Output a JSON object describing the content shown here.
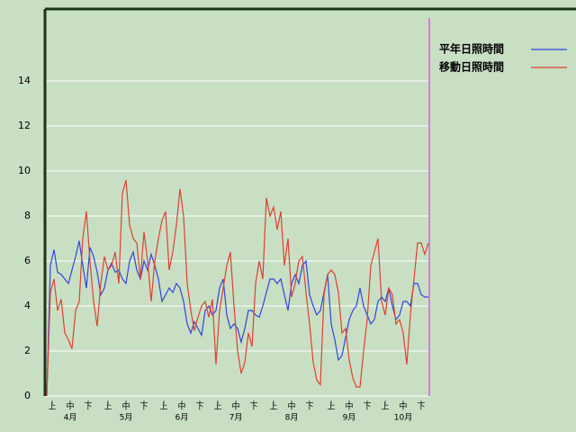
{
  "chart_data": {
    "type": "line",
    "x": [
      0,
      2,
      4,
      6,
      8,
      10,
      12,
      14,
      16,
      18,
      20,
      22,
      24,
      26,
      28,
      30,
      32,
      34,
      36,
      38,
      40,
      42,
      44,
      46,
      48,
      50,
      52,
      54,
      56,
      58,
      60,
      62,
      64,
      66,
      68,
      70,
      72,
      74,
      76,
      78,
      80,
      82,
      84,
      86,
      88,
      90,
      92,
      94,
      96,
      98,
      100,
      102,
      104,
      106,
      108,
      110,
      112,
      114,
      116,
      118,
      120,
      122,
      124,
      126,
      128,
      130,
      132,
      134,
      136,
      138,
      140,
      142,
      144,
      146,
      148,
      150,
      152,
      154,
      156,
      158,
      160,
      162,
      164,
      166,
      168,
      170,
      172,
      174,
      176,
      178,
      180,
      182,
      184,
      186,
      188,
      190,
      192,
      194,
      196,
      198,
      200,
      202,
      204,
      206,
      208,
      210,
      212
    ],
    "series": [
      {
        "name": "平年日照時間",
        "color": "#3344dd",
        "values": [
          0,
          5.8,
          6.5,
          5.5,
          5.4,
          5.2,
          5.0,
          5.6,
          6.2,
          6.9,
          5.8,
          4.8,
          6.6,
          6.2,
          5.5,
          4.5,
          4.8,
          5.6,
          5.9,
          5.5,
          5.6,
          5.2,
          5.0,
          6.0,
          6.4,
          5.6,
          5.2,
          6.0,
          5.6,
          6.3,
          5.8,
          5.2,
          4.2,
          4.5,
          4.8,
          4.6,
          5.0,
          4.8,
          4.2,
          3.2,
          2.8,
          3.3,
          3.0,
          2.7,
          3.8,
          4.0,
          3.6,
          3.8,
          4.8,
          5.2,
          3.6,
          3.0,
          3.2,
          3.0,
          2.4,
          3.0,
          3.8,
          3.8,
          3.6,
          3.5,
          4.0,
          4.6,
          5.2,
          5.2,
          5.0,
          5.2,
          4.5,
          3.8,
          5.0,
          5.4,
          5.0,
          5.8,
          6.0,
          4.5,
          4.0,
          3.6,
          3.8,
          4.6,
          5.4,
          3.2,
          2.5,
          1.6,
          1.8,
          2.6,
          3.4,
          3.8,
          4.0,
          4.8,
          4.0,
          3.6,
          3.2,
          3.4,
          4.2,
          4.4,
          4.2,
          4.8,
          4.0,
          3.4,
          3.6,
          4.2,
          4.2,
          4.0,
          5.0,
          5.0,
          4.5,
          4.4,
          4.4
        ]
      },
      {
        "name": "移動日照時間",
        "color": "#e04030",
        "values": [
          0,
          4.6,
          5.2,
          3.8,
          4.3,
          2.8,
          2.5,
          2.1,
          3.8,
          4.2,
          7.0,
          8.2,
          6.0,
          4.2,
          3.1,
          5.0,
          6.2,
          5.6,
          5.8,
          6.4,
          5.0,
          9.0,
          9.6,
          7.6,
          7.0,
          6.8,
          5.2,
          7.3,
          6.0,
          4.2,
          6.0,
          7.0,
          7.8,
          8.2,
          5.6,
          6.4,
          7.6,
          9.2,
          8.0,
          5.0,
          3.8,
          2.9,
          3.5,
          4.0,
          4.2,
          3.5,
          4.3,
          1.4,
          3.8,
          4.8,
          5.8,
          6.4,
          4.0,
          2.0,
          1.0,
          1.5,
          2.8,
          2.2,
          5.0,
          6.0,
          5.2,
          8.8,
          8.0,
          8.4,
          7.4,
          8.2,
          5.8,
          7.0,
          4.4,
          5.0,
          6.0,
          6.2,
          4.6,
          3.2,
          1.5,
          0.7,
          0.5,
          4.5,
          5.4,
          5.6,
          5.4,
          4.6,
          2.8,
          3.0,
          1.6,
          0.8,
          0.4,
          0.4,
          2.0,
          3.4,
          5.8,
          6.4,
          7.0,
          4.2,
          3.6,
          4.8,
          4.5,
          3.2,
          3.4,
          2.8,
          1.4,
          3.6,
          5.2,
          6.8,
          6.8,
          6.3,
          6.8
        ]
      }
    ],
    "xlim": [
      0,
      213
    ],
    "xticks": [
      {
        "value": 3,
        "label": "上"
      },
      {
        "value": 13,
        "label": "中"
      },
      {
        "value": 23,
        "label": "下"
      },
      {
        "value": 34,
        "label": "上"
      },
      {
        "value": 44,
        "label": "中"
      },
      {
        "value": 54,
        "label": "下"
      },
      {
        "value": 65,
        "label": "上"
      },
      {
        "value": 75,
        "label": "中"
      },
      {
        "value": 85,
        "label": "下"
      },
      {
        "value": 95,
        "label": "上"
      },
      {
        "value": 105,
        "label": "中"
      },
      {
        "value": 115,
        "label": "下"
      },
      {
        "value": 126,
        "label": "上"
      },
      {
        "value": 136,
        "label": "中"
      },
      {
        "value": 146,
        "label": "下"
      },
      {
        "value": 158,
        "label": "上"
      },
      {
        "value": 168,
        "label": "中"
      },
      {
        "value": 178,
        "label": "下"
      },
      {
        "value": 188,
        "label": "上"
      },
      {
        "value": 198,
        "label": "中"
      },
      {
        "value": 208,
        "label": "下"
      }
    ],
    "month_labels": [
      {
        "value": 13,
        "label": "4月"
      },
      {
        "value": 44,
        "label": "5月"
      },
      {
        "value": 75,
        "label": "6月"
      },
      {
        "value": 105,
        "label": "7月"
      },
      {
        "value": 136,
        "label": "8月"
      },
      {
        "value": 168,
        "label": "9月"
      },
      {
        "value": 198,
        "label": "10月"
      }
    ],
    "ylim": [
      0,
      17.2
    ],
    "yticks": [
      0,
      2,
      4,
      6,
      8,
      10,
      12,
      14
    ],
    "grid": true
  }
}
